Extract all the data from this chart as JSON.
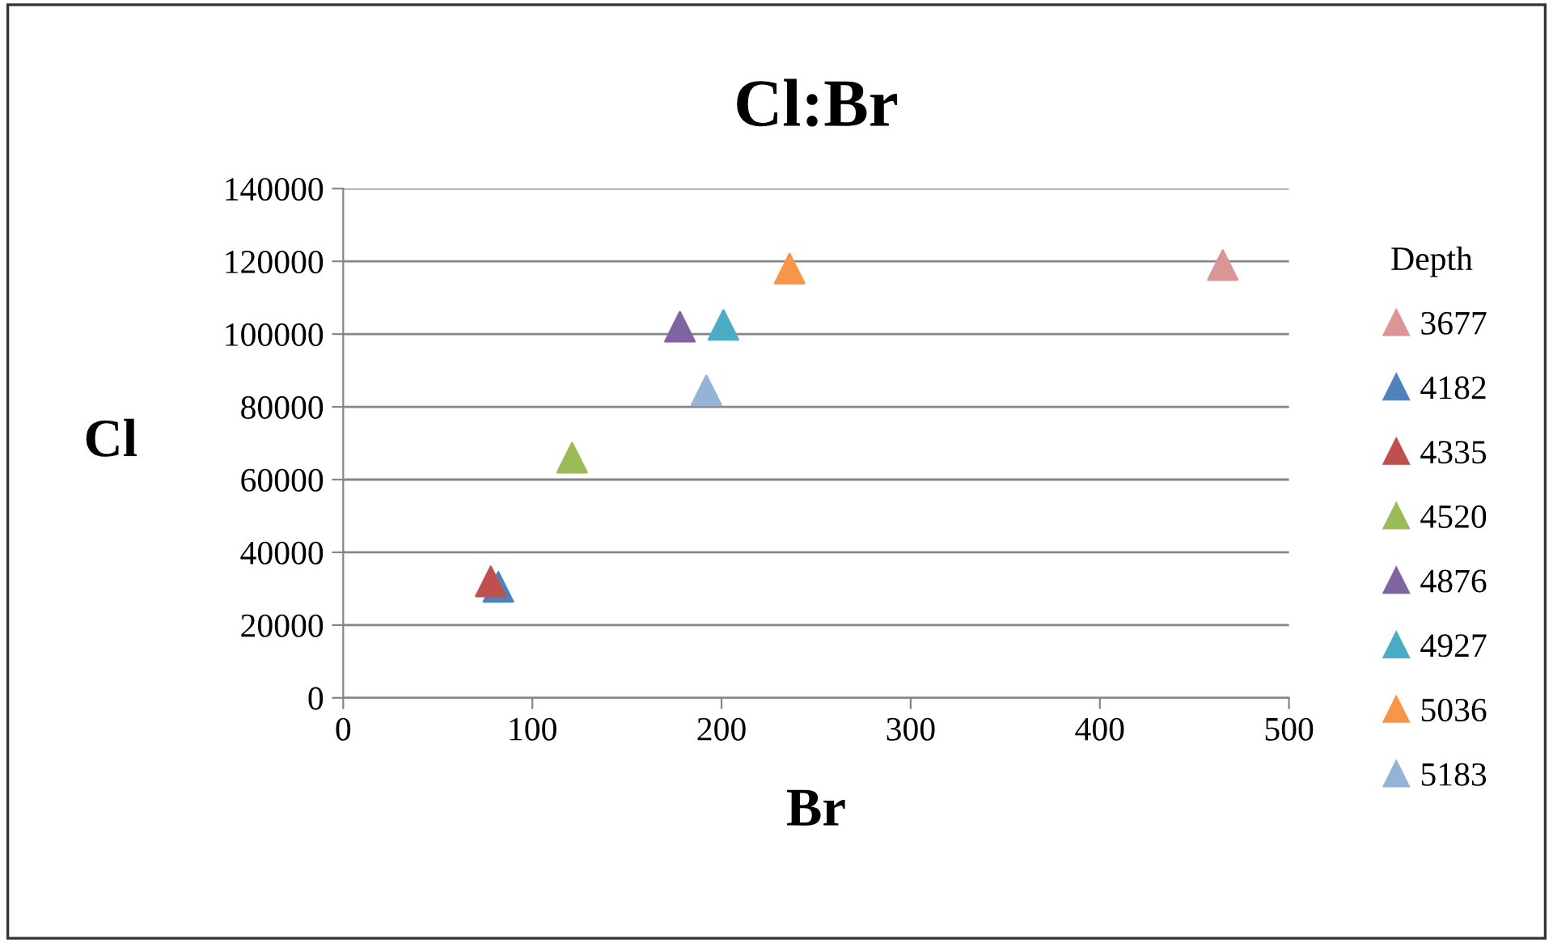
{
  "chart_data": {
    "type": "scatter",
    "title": "Cl:Br",
    "xlabel": "Br",
    "ylabel": "Cl",
    "legend_title": "Depth",
    "legend": "right",
    "marker": "triangle",
    "grid": "y",
    "xlim": [
      0,
      500
    ],
    "xticks": [
      0,
      100,
      200,
      300,
      400,
      500
    ],
    "ylim": [
      0,
      140000
    ],
    "yticks": [
      0,
      20000,
      40000,
      60000,
      80000,
      100000,
      120000,
      140000
    ],
    "series": [
      {
        "name": "3677",
        "color": "#d99694",
        "x": [
          465
        ],
        "values": [
          119000
        ]
      },
      {
        "name": "4182",
        "color": "#4f81bd",
        "x": [
          82
        ],
        "values": [
          30500
        ]
      },
      {
        "name": "4335",
        "color": "#c0504d",
        "x": [
          78
        ],
        "values": [
          32000
        ]
      },
      {
        "name": "4520",
        "color": "#9bbb59",
        "x": [
          121
        ],
        "values": [
          66000
        ]
      },
      {
        "name": "4876",
        "color": "#8064a2",
        "x": [
          178
        ],
        "values": [
          102000
        ]
      },
      {
        "name": "4927",
        "color": "#4bacc6",
        "x": [
          201
        ],
        "values": [
          102500
        ]
      },
      {
        "name": "5036",
        "color": "#f79646",
        "x": [
          236
        ],
        "values": [
          118000
        ]
      },
      {
        "name": "5183",
        "color": "#95b3d7",
        "x": [
          192
        ],
        "values": [
          84500
        ]
      }
    ]
  }
}
